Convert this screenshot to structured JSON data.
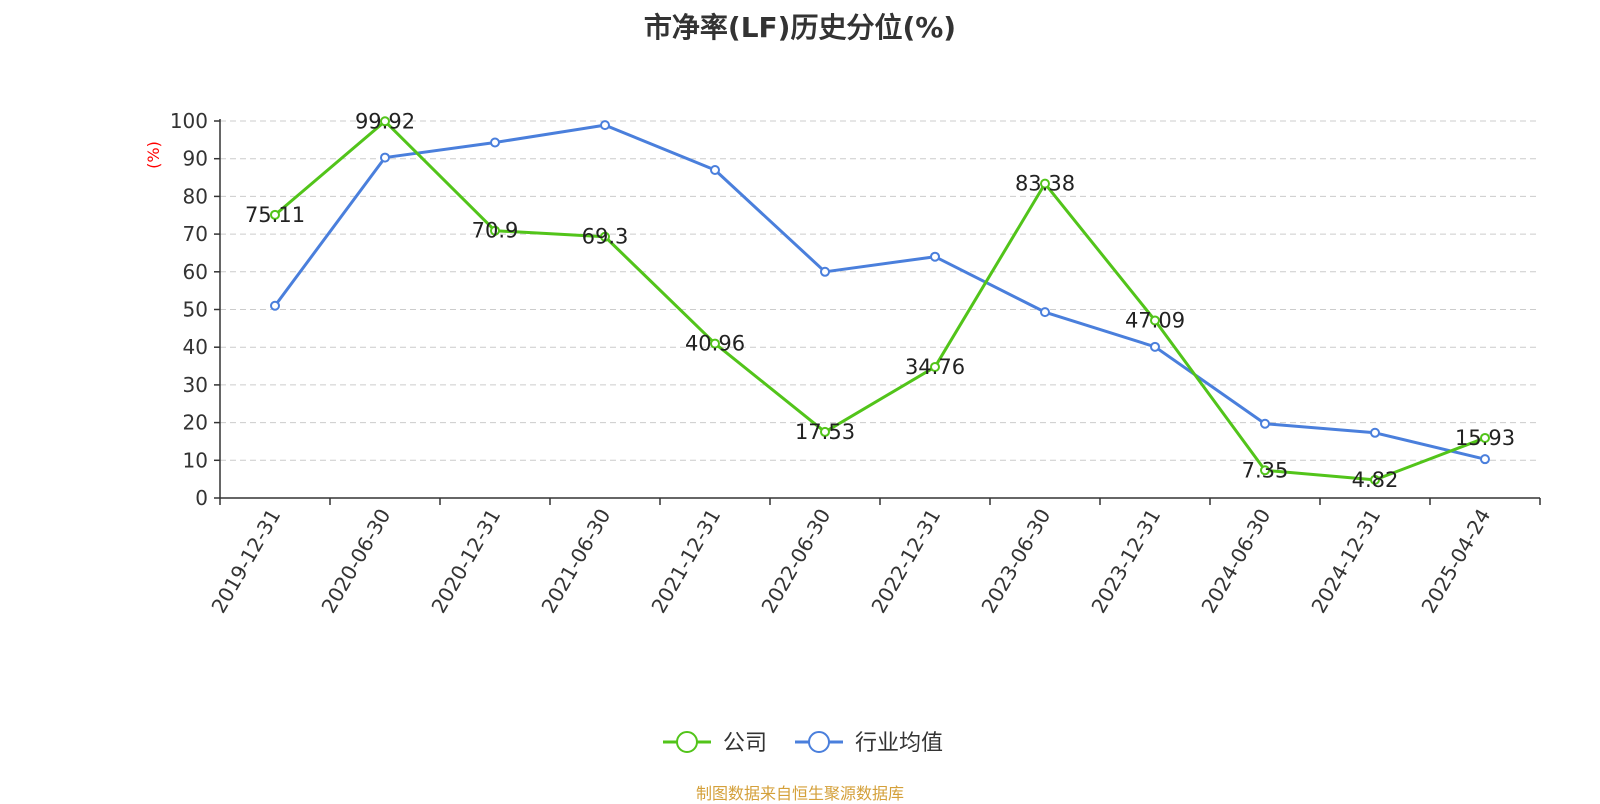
{
  "chart_data": {
    "type": "line",
    "title": "市净率(LF)历史分位(%)",
    "ylabel": "(%)",
    "xlabel": "",
    "ylim": [
      0,
      100
    ],
    "yticks": [
      0,
      10,
      20,
      30,
      40,
      50,
      60,
      70,
      80,
      90,
      100
    ],
    "grid": true,
    "legend_position": "bottom-center",
    "categories": [
      "2019-12-31",
      "2020-06-30",
      "2020-12-31",
      "2021-06-30",
      "2021-12-31",
      "2022-06-30",
      "2022-12-31",
      "2023-06-30",
      "2023-12-31",
      "2024-06-30",
      "2024-12-31",
      "2025-04-24"
    ],
    "series": [
      {
        "name": "公司",
        "color": "#52c41a",
        "values": [
          75.11,
          99.92,
          70.9,
          69.3,
          40.96,
          17.53,
          34.76,
          83.38,
          47.09,
          7.35,
          4.82,
          15.93
        ],
        "labels": [
          "75.11",
          "99.92",
          "70.9",
          "69.3",
          "40.96",
          "17.53",
          "34.76",
          "83.38",
          "47.09",
          "7.35",
          "4.82",
          "15.93"
        ]
      },
      {
        "name": "行业均值",
        "color": "#4a7fdc",
        "values": [
          51.0,
          90.3,
          94.3,
          98.9,
          87.0,
          60.0,
          64.0,
          49.3,
          40.1,
          19.7,
          17.3,
          10.3
        ]
      }
    ],
    "source": "制图数据来自恒生聚源数据库"
  },
  "colors": {
    "axis": "#333333",
    "grid": "#cccccc",
    "ylabel": "#ff0000",
    "source": "#d4a03a"
  }
}
